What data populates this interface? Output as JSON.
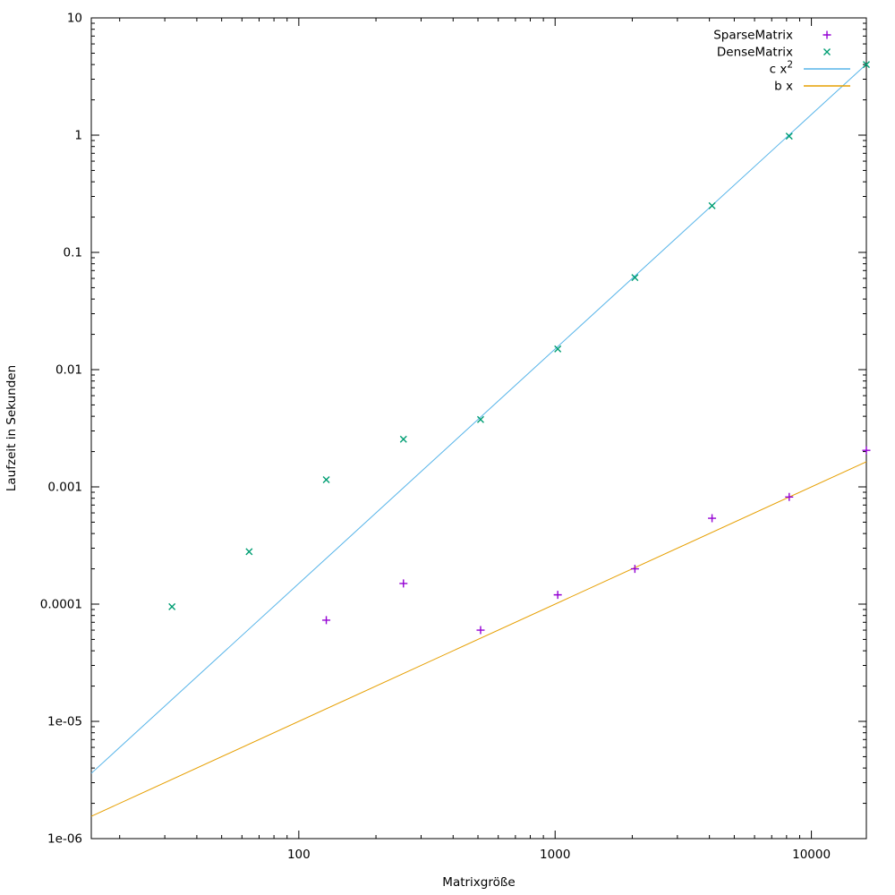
{
  "chart_data": {
    "type": "scatter",
    "title": "",
    "xlabel": "Matrixgröße",
    "ylabel": "Laufzeit in Sekunden",
    "x_scale": "log",
    "y_scale": "log",
    "xlim": [
      15.5,
      16384
    ],
    "ylim": [
      1e-06,
      10
    ],
    "grid": false,
    "legend_position": "top-right",
    "axis_color": "#000000",
    "xticks": [
      {
        "v": 100,
        "label": "100"
      },
      {
        "v": 1000,
        "label": "1000"
      },
      {
        "v": 10000,
        "label": "10000"
      }
    ],
    "yticks": [
      {
        "v": 10,
        "label": "10"
      },
      {
        "v": 1,
        "label": "1"
      },
      {
        "v": 0.1,
        "label": "0.1"
      },
      {
        "v": 0.01,
        "label": "0.01"
      },
      {
        "v": 0.001,
        "label": "0.001"
      },
      {
        "v": 0.0001,
        "label": "0.0001"
      },
      {
        "v": 1e-05,
        "label": "1e-05"
      },
      {
        "v": 1e-06,
        "label": "1e-06"
      }
    ],
    "series": [
      {
        "name": "SparseMatrix",
        "sup": "",
        "style": "points",
        "marker": "plus",
        "color": "#9400d3",
        "x": [
          128,
          256,
          512,
          1024,
          2048,
          4096,
          8192,
          16384
        ],
        "y": [
          7.3e-05,
          0.00015,
          6e-05,
          0.00012,
          0.0002,
          0.00054,
          0.00082,
          0.00205
        ]
      },
      {
        "name": "DenseMatrix",
        "sup": "",
        "style": "points",
        "marker": "cross",
        "color": "#009e73",
        "x": [
          32,
          64,
          128,
          256,
          512,
          1024,
          2048,
          4096,
          8192,
          16384
        ],
        "y": [
          9.5e-05,
          0.00028,
          0.00115,
          0.00255,
          0.00375,
          0.015,
          0.061,
          0.25,
          0.98,
          4.0
        ]
      },
      {
        "name": "c x",
        "sup": "2",
        "style": "line",
        "color": "#56b4e9",
        "coef": 1.5e-08,
        "power": 2
      },
      {
        "name": "b x",
        "sup": "",
        "style": "line",
        "color": "#e69f00",
        "coef": 1e-07,
        "power": 1
      }
    ]
  }
}
